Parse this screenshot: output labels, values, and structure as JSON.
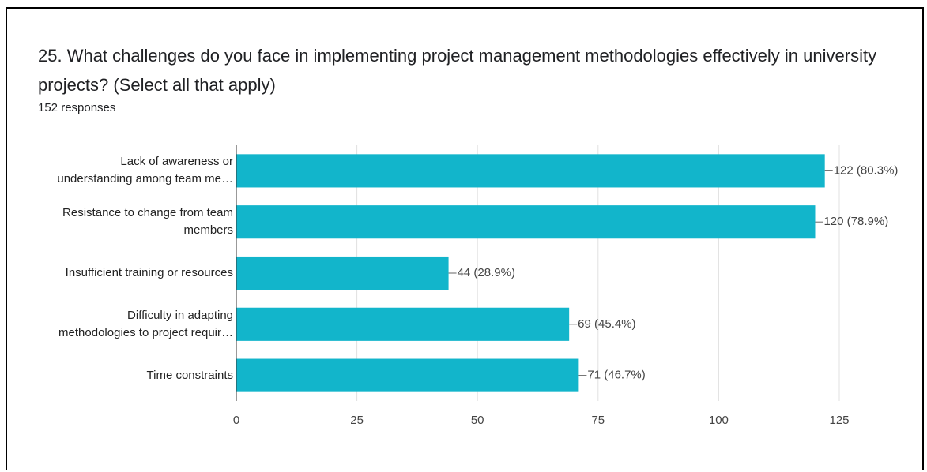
{
  "chart_data": {
    "type": "bar",
    "orientation": "horizontal",
    "title": "25. What challenges do you face in implementing project management methodologies effectively in university projects? (Select all that apply)",
    "subtitle": "152 responses",
    "categories": [
      "Lack of awareness or\nunderstanding among team me…",
      "Resistance to change from team\nmembers",
      "Insufficient training or resources",
      "Difficulty in adapting\nmethodologies to project requir…",
      "Time constraints"
    ],
    "values": [
      122,
      120,
      44,
      69,
      71
    ],
    "value_labels": [
      "122 (80.3%)",
      "120 (78.9%)",
      "44 (28.9%)",
      "69 (45.4%)",
      "71 (46.7%)"
    ],
    "color": "#12b5cb",
    "xlim": [
      0,
      125
    ],
    "xticks": [
      0,
      25,
      50,
      75,
      100,
      125
    ],
    "grid": true
  }
}
